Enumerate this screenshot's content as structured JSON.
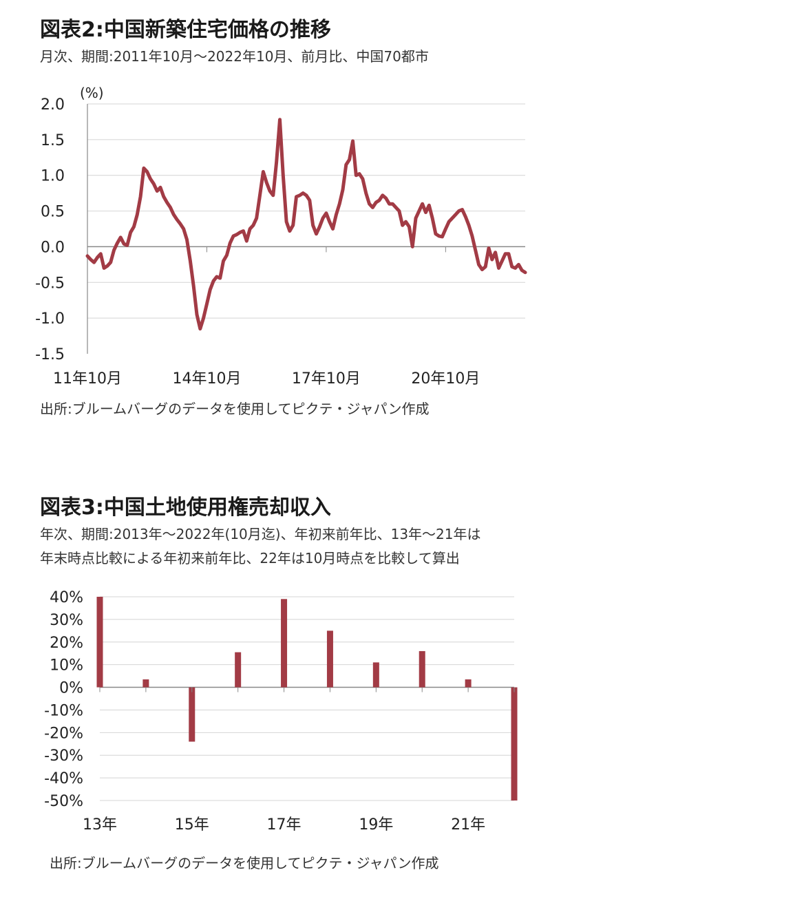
{
  "chart1": {
    "title": "図表2:中国新築住宅価格の推移",
    "subtitle": "月次、期間:2011年10月～2022年10月、前月比、中国70都市",
    "source": "出所:ブルームバーグのデータを使用してピクテ・ジャパン作成"
  },
  "chart2": {
    "title": "図表3:中国土地使用権売却収入",
    "subtitle_line1": "年次、期間:2013年～2022年(10月迄)、年初来前年比、13年～21年は",
    "subtitle_line2": "年末時点比較による年初来前年比、22年は10月時点を比較して算出",
    "source": "出所:ブルームバーグのデータを使用してピクテ・ジャパン作成"
  },
  "colors": {
    "series": "#a23b45",
    "grid": "#d4d4d4",
    "axis": "#888888"
  },
  "chart_data": [
    {
      "type": "line",
      "ylabel": "(%)",
      "ylim": [
        -1.5,
        2.0
      ],
      "yticks": [
        2.0,
        1.5,
        1.0,
        0.5,
        0.0,
        -0.5,
        -1.0,
        -1.5
      ],
      "ytick_labels": [
        "2.0",
        "1.5",
        "1.0",
        "0.5",
        "0.0",
        "-0.5",
        "-1.0",
        "-1.5"
      ],
      "x_start": "2011-10",
      "x_end": "2022-10",
      "xtick_labels": [
        "11年10月",
        "14年10月",
        "17年10月",
        "20年10月"
      ],
      "grid": "horizontal",
      "series": [
        {
          "points": [
            [
              "2011-10",
              -0.13
            ],
            [
              "2011-11",
              -0.18
            ],
            [
              "2011-12",
              -0.22
            ],
            [
              "2012-01",
              -0.15
            ],
            [
              "2012-02",
              -0.1
            ],
            [
              "2012-03",
              -0.3
            ],
            [
              "2012-04",
              -0.27
            ],
            [
              "2012-05",
              -0.22
            ],
            [
              "2012-06",
              -0.05
            ],
            [
              "2012-07",
              0.05
            ],
            [
              "2012-08",
              0.13
            ],
            [
              "2012-09",
              0.04
            ],
            [
              "2012-10",
              0.02
            ],
            [
              "2012-11",
              0.2
            ],
            [
              "2012-12",
              0.28
            ],
            [
              "2013-01",
              0.45
            ],
            [
              "2013-02",
              0.7
            ],
            [
              "2013-03",
              1.1
            ],
            [
              "2013-04",
              1.05
            ],
            [
              "2013-05",
              0.95
            ],
            [
              "2013-06",
              0.88
            ],
            [
              "2013-07",
              0.78
            ],
            [
              "2013-08",
              0.83
            ],
            [
              "2013-09",
              0.7
            ],
            [
              "2013-10",
              0.62
            ],
            [
              "2013-11",
              0.55
            ],
            [
              "2013-12",
              0.45
            ],
            [
              "2014-01",
              0.38
            ],
            [
              "2014-02",
              0.32
            ],
            [
              "2014-03",
              0.25
            ],
            [
              "2014-04",
              0.1
            ],
            [
              "2014-05",
              -0.2
            ],
            [
              "2014-06",
              -0.55
            ],
            [
              "2014-07",
              -0.95
            ],
            [
              "2014-08",
              -1.15
            ],
            [
              "2014-09",
              -1.0
            ],
            [
              "2014-10",
              -0.8
            ],
            [
              "2014-11",
              -0.6
            ],
            [
              "2014-12",
              -0.48
            ],
            [
              "2015-01",
              -0.42
            ],
            [
              "2015-02",
              -0.44
            ],
            [
              "2015-03",
              -0.2
            ],
            [
              "2015-04",
              -0.12
            ],
            [
              "2015-05",
              0.05
            ],
            [
              "2015-06",
              0.15
            ],
            [
              "2015-07",
              0.17
            ],
            [
              "2015-08",
              0.2
            ],
            [
              "2015-09",
              0.22
            ],
            [
              "2015-10",
              0.08
            ],
            [
              "2015-11",
              0.25
            ],
            [
              "2015-12",
              0.3
            ],
            [
              "2016-01",
              0.4
            ],
            [
              "2016-02",
              0.72
            ],
            [
              "2016-03",
              1.05
            ],
            [
              "2016-04",
              0.9
            ],
            [
              "2016-05",
              0.78
            ],
            [
              "2016-06",
              0.72
            ],
            [
              "2016-07",
              1.18
            ],
            [
              "2016-08",
              1.78
            ],
            [
              "2016-09",
              1.0
            ],
            [
              "2016-10",
              0.35
            ],
            [
              "2016-11",
              0.22
            ],
            [
              "2016-12",
              0.3
            ],
            [
              "2017-01",
              0.7
            ],
            [
              "2017-02",
              0.72
            ],
            [
              "2017-03",
              0.75
            ],
            [
              "2017-04",
              0.72
            ],
            [
              "2017-05",
              0.65
            ],
            [
              "2017-06",
              0.3
            ],
            [
              "2017-07",
              0.18
            ],
            [
              "2017-08",
              0.28
            ],
            [
              "2017-09",
              0.4
            ],
            [
              "2017-10",
              0.47
            ],
            [
              "2017-11",
              0.35
            ],
            [
              "2017-12",
              0.25
            ],
            [
              "2018-01",
              0.45
            ],
            [
              "2018-02",
              0.6
            ],
            [
              "2018-03",
              0.8
            ],
            [
              "2018-04",
              1.15
            ],
            [
              "2018-05",
              1.22
            ],
            [
              "2018-06",
              1.48
            ],
            [
              "2018-07",
              1.0
            ],
            [
              "2018-08",
              1.02
            ],
            [
              "2018-09",
              0.95
            ],
            [
              "2018-10",
              0.75
            ],
            [
              "2018-11",
              0.6
            ],
            [
              "2018-12",
              0.55
            ],
            [
              "2019-01",
              0.62
            ],
            [
              "2019-02",
              0.65
            ],
            [
              "2019-03",
              0.72
            ],
            [
              "2019-04",
              0.68
            ],
            [
              "2019-05",
              0.6
            ],
            [
              "2019-06",
              0.6
            ],
            [
              "2019-07",
              0.55
            ],
            [
              "2019-08",
              0.5
            ],
            [
              "2019-09",
              0.3
            ],
            [
              "2019-10",
              0.35
            ],
            [
              "2019-11",
              0.28
            ],
            [
              "2019-12",
              0.0
            ],
            [
              "2020-01",
              0.4
            ],
            [
              "2020-02",
              0.5
            ],
            [
              "2020-03",
              0.6
            ],
            [
              "2020-04",
              0.48
            ],
            [
              "2020-05",
              0.58
            ],
            [
              "2020-06",
              0.4
            ],
            [
              "2020-07",
              0.18
            ],
            [
              "2020-08",
              0.15
            ],
            [
              "2020-09",
              0.14
            ],
            [
              "2020-10",
              0.25
            ],
            [
              "2020-11",
              0.35
            ],
            [
              "2020-12",
              0.4
            ],
            [
              "2021-01",
              0.45
            ],
            [
              "2021-02",
              0.5
            ],
            [
              "2021-03",
              0.52
            ],
            [
              "2021-04",
              0.42
            ],
            [
              "2021-05",
              0.3
            ],
            [
              "2021-06",
              0.15
            ],
            [
              "2021-07",
              -0.05
            ],
            [
              "2021-08",
              -0.25
            ],
            [
              "2021-09",
              -0.32
            ],
            [
              "2021-10",
              -0.28
            ],
            [
              "2021-11",
              -0.02
            ],
            [
              "2021-12",
              -0.18
            ],
            [
              "2022-01",
              -0.08
            ],
            [
              "2022-02",
              -0.3
            ],
            [
              "2022-03",
              -0.2
            ],
            [
              "2022-04",
              -0.1
            ],
            [
              "2022-05",
              -0.1
            ],
            [
              "2022-06",
              -0.28
            ],
            [
              "2022-07",
              -0.3
            ],
            [
              "2022-08",
              -0.25
            ],
            [
              "2022-09",
              -0.33
            ],
            [
              "2022-10",
              -0.36
            ]
          ]
        }
      ]
    },
    {
      "type": "bar",
      "categories": [
        "13年",
        "14年",
        "15年",
        "16年",
        "17年",
        "18年",
        "19年",
        "20年",
        "21年",
        "22年"
      ],
      "values": [
        40,
        3.5,
        -24,
        15.5,
        39,
        25,
        11,
        16,
        3.5,
        -50
      ],
      "xtick_labels": [
        "13年",
        "15年",
        "17年",
        "19年",
        "21年"
      ],
      "ylim": [
        -50,
        40
      ],
      "yticks": [
        40,
        30,
        20,
        10,
        0,
        -10,
        -20,
        -30,
        -40,
        -50
      ],
      "ytick_labels": [
        "40%",
        "30%",
        "20%",
        "10%",
        "0%",
        "-10%",
        "-20%",
        "-30%",
        "-40%",
        "-50%"
      ],
      "grid": "horizontal"
    }
  ]
}
